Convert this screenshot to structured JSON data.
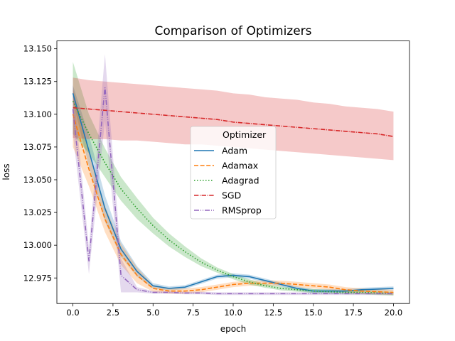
{
  "chart_data": {
    "type": "line",
    "title": "Comparison of Optimizers",
    "xlabel": "epoch",
    "ylabel": "loss",
    "xlim": [
      -1.0,
      21.0
    ],
    "ylim": [
      12.9555,
      13.156
    ],
    "xticks": [
      0.0,
      2.5,
      5.0,
      7.5,
      10.0,
      12.5,
      15.0,
      17.5,
      20.0
    ],
    "xtick_labels": [
      "0.0",
      "2.5",
      "5.0",
      "7.5",
      "10.0",
      "12.5",
      "15.0",
      "17.5",
      "20.0"
    ],
    "yticks": [
      12.975,
      13.0,
      13.025,
      13.05,
      13.075,
      13.1,
      13.125,
      13.15
    ],
    "ytick_labels": [
      "12.975",
      "13.000",
      "13.025",
      "13.050",
      "13.075",
      "13.100",
      "13.125",
      "13.150"
    ],
    "grid": false,
    "legend": {
      "title": "Optimizer",
      "placement": "center"
    },
    "x": [
      0,
      1,
      2,
      3,
      4,
      5,
      6,
      7,
      8,
      9,
      10,
      11,
      12,
      13,
      14,
      15,
      16,
      17,
      18,
      19,
      20
    ],
    "series": [
      {
        "name": "Adam",
        "color": "#1f77b4",
        "dash": "solid",
        "values": [
          13.116,
          13.072,
          13.028,
          12.997,
          12.98,
          12.969,
          12.967,
          12.968,
          12.972,
          12.976,
          12.977,
          12.976,
          12.973,
          12.97,
          12.967,
          12.965,
          12.965,
          12.965,
          12.966,
          12.9665,
          12.967
        ],
        "lower": [
          13.11,
          13.06,
          13.018,
          12.991,
          12.976,
          12.967,
          12.9655,
          12.9665,
          12.9705,
          12.9745,
          12.9755,
          12.9745,
          12.9715,
          12.9685,
          12.9655,
          12.9635,
          12.9635,
          12.9635,
          12.9645,
          12.965,
          12.9655
        ],
        "upper": [
          13.122,
          13.084,
          13.038,
          13.003,
          12.984,
          12.971,
          12.9685,
          12.9695,
          12.9735,
          12.9775,
          12.9785,
          12.9775,
          12.9745,
          12.9715,
          12.9685,
          12.9665,
          12.9665,
          12.9665,
          12.9675,
          12.968,
          12.9685
        ]
      },
      {
        "name": "Adamax",
        "color": "#ff7f0e",
        "dash": "dashed",
        "values": [
          13.1,
          13.058,
          13.02,
          12.993,
          12.977,
          12.967,
          12.965,
          12.965,
          12.966,
          12.968,
          12.97,
          12.971,
          12.971,
          12.971,
          12.97,
          12.969,
          12.968,
          12.966,
          12.965,
          12.9645,
          12.964
        ],
        "lower": [
          13.075,
          13.045,
          13.01,
          12.985,
          12.971,
          12.9645,
          12.963,
          12.963,
          12.964,
          12.966,
          12.968,
          12.969,
          12.969,
          12.969,
          12.968,
          12.967,
          12.966,
          12.964,
          12.963,
          12.9625,
          12.962
        ],
        "upper": [
          13.12,
          13.071,
          13.03,
          13.001,
          12.983,
          12.9695,
          12.967,
          12.967,
          12.968,
          12.97,
          12.972,
          12.973,
          12.973,
          12.973,
          12.972,
          12.971,
          12.97,
          12.968,
          12.967,
          12.9665,
          12.966
        ]
      },
      {
        "name": "Adagrad",
        "color": "#2ca02c",
        "dash": "dotted",
        "values": [
          13.11,
          13.085,
          13.063,
          13.043,
          13.028,
          13.015,
          13.004,
          12.995,
          12.987,
          12.981,
          12.976,
          12.972,
          12.969,
          12.967,
          12.966,
          12.965,
          12.9645,
          12.964,
          12.964,
          12.9635,
          12.963
        ],
        "lower": [
          13.085,
          13.07,
          13.052,
          13.034,
          13.02,
          13.009,
          12.999,
          12.991,
          12.984,
          12.979,
          12.974,
          12.97,
          12.9675,
          12.9655,
          12.9645,
          12.9635,
          12.963,
          12.9625,
          12.9625,
          12.962,
          12.9615
        ],
        "upper": [
          13.14,
          13.1,
          13.074,
          13.052,
          13.036,
          13.021,
          13.009,
          12.999,
          12.99,
          12.983,
          12.978,
          12.974,
          12.9705,
          12.9685,
          12.9675,
          12.9665,
          12.966,
          12.9655,
          12.9655,
          12.965,
          12.9645
        ]
      },
      {
        "name": "SGD",
        "color": "#d62728",
        "dash": "dashdot",
        "values": [
          13.105,
          13.104,
          13.103,
          13.102,
          13.101,
          13.1,
          13.099,
          13.098,
          13.097,
          13.096,
          13.094,
          13.093,
          13.092,
          13.091,
          13.09,
          13.089,
          13.088,
          13.087,
          13.086,
          13.085,
          13.083
        ],
        "lower": [
          13.082,
          13.081,
          13.081,
          13.08,
          13.08,
          13.079,
          13.078,
          13.077,
          13.077,
          13.076,
          13.075,
          13.074,
          13.073,
          13.072,
          13.071,
          13.07,
          13.069,
          13.068,
          13.067,
          13.066,
          13.065
        ],
        "upper": [
          13.128,
          13.126,
          13.125,
          13.124,
          13.123,
          13.122,
          13.121,
          13.12,
          13.119,
          13.118,
          13.116,
          13.115,
          13.113,
          13.112,
          13.111,
          13.109,
          13.108,
          13.106,
          13.105,
          13.104,
          13.102
        ]
      },
      {
        "name": "RMSprop",
        "color": "#9467bd",
        "dash": "dashdotdot",
        "values": [
          13.104,
          12.988,
          13.121,
          12.977,
          12.966,
          12.964,
          12.964,
          12.9635,
          12.9635,
          12.963,
          12.963,
          12.963,
          12.963,
          12.963,
          12.963,
          12.963,
          12.963,
          12.963,
          12.963,
          12.963,
          12.963
        ],
        "lower": [
          13.085,
          12.978,
          13.095,
          12.964,
          12.964,
          12.963,
          12.963,
          12.9625,
          12.9625,
          12.962,
          12.962,
          12.962,
          12.962,
          12.962,
          12.962,
          12.962,
          12.962,
          12.962,
          12.962,
          12.962,
          12.962
        ],
        "upper": [
          13.123,
          12.998,
          13.146,
          12.99,
          12.968,
          12.965,
          12.965,
          12.9645,
          12.9645,
          12.964,
          12.964,
          12.964,
          12.964,
          12.964,
          12.964,
          12.964,
          12.964,
          12.964,
          12.964,
          12.964,
          12.964
        ]
      }
    ]
  }
}
